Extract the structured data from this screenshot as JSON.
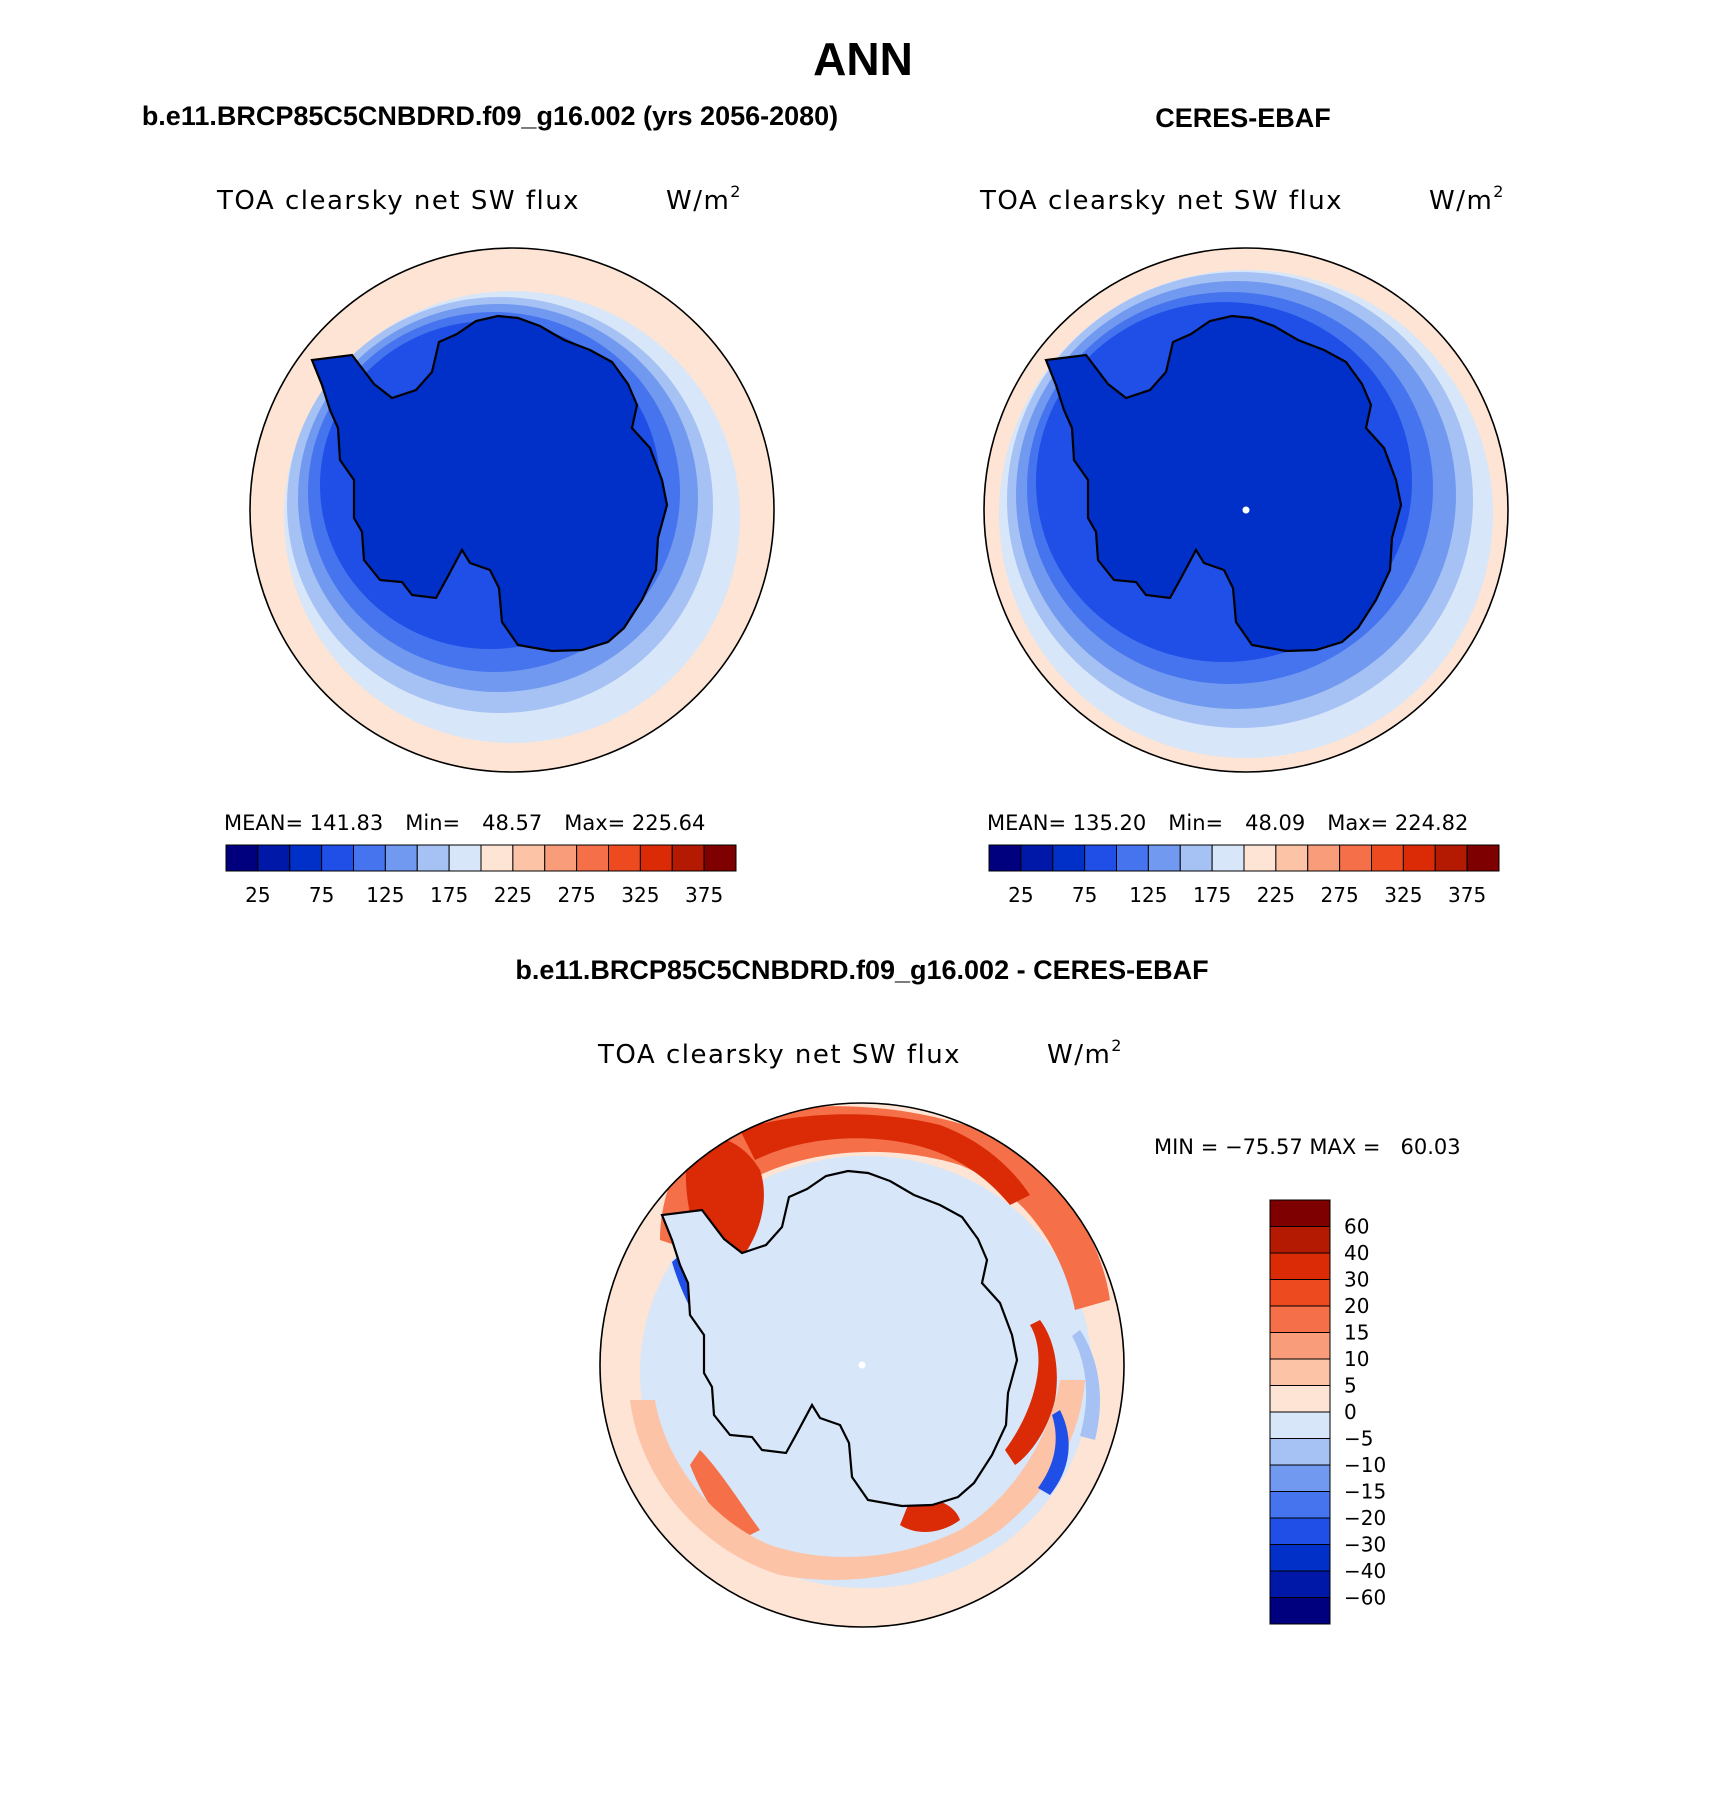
{
  "figure": {
    "main_title": "ANN",
    "panels": [
      {
        "id": "model",
        "title": "b.e11.BRCP85C5CNBDRD.f09_g16.002 (yrs 2056-2080)",
        "variable": "TOA clearsky net SW flux",
        "units_base": "W/m",
        "units_sup": "2",
        "stats": {
          "mean_label": "MEAN=",
          "mean": "141.83",
          "min_label": "Min=",
          "min": "48.57",
          "max_label": "Max=",
          "max": "225.64"
        }
      },
      {
        "id": "obs",
        "title": "CERES-EBAF",
        "variable": "TOA clearsky net SW flux",
        "units_base": "W/m",
        "units_sup": "2",
        "stats": {
          "mean_label": "MEAN=",
          "mean": "135.20",
          "min_label": "Min=",
          "min": "48.09",
          "max_label": "Max=",
          "max": "224.82"
        }
      },
      {
        "id": "diff",
        "title": "b.e11.BRCP85C5CNBDRD.f09_g16.002 - CERES-EBAF",
        "variable": "TOA clearsky net SW flux",
        "units_base": "W/m",
        "units_sup": "2",
        "minmax_text": "MIN = −75.57 MAX =   60.03"
      }
    ],
    "colorbar_abs": {
      "levels": [
        "25",
        "75",
        "125",
        "175",
        "225",
        "275",
        "325",
        "375"
      ],
      "colors": [
        "#00007f",
        "#0018a8",
        "#0030c8",
        "#1f4fe6",
        "#4574ee",
        "#7199ef",
        "#a6c2f4",
        "#d7e6f8",
        "#fde4d4",
        "#fcc3a6",
        "#f99c79",
        "#f57048",
        "#ee4a20",
        "#da2b06",
        "#b41a02",
        "#7f0000"
      ]
    },
    "colorbar_diff": {
      "levels": [
        "60",
        "40",
        "30",
        "20",
        "15",
        "10",
        "5",
        "0",
        "−5",
        "−10",
        "−15",
        "−20",
        "−30",
        "−40",
        "−60"
      ],
      "colors": [
        "#7f0000",
        "#b41a02",
        "#da2b06",
        "#ee4a20",
        "#f57048",
        "#f99c79",
        "#fcc3a6",
        "#fde4d4",
        "#d7e6f8",
        "#a6c2f4",
        "#7199ef",
        "#4574ee",
        "#1f4fe6",
        "#0030c8",
        "#0018a8",
        "#00007f"
      ]
    },
    "field_colors": {
      "ice": "#0030c8",
      "ring1": "#1f4fe6",
      "ring2": "#4574ee",
      "ring3": "#7199ef",
      "ring4": "#a6c2f4",
      "ring5": "#d7e6f8",
      "outer": "#fde4d4",
      "coast": "#000000",
      "diff_base": "#d7e6f8",
      "diff_red_strong": "#da2b06",
      "diff_red": "#f57048",
      "diff_red_light": "#fcc3a6",
      "diff_pink": "#fde4d4",
      "diff_blue": "#1f4fe6",
      "diff_blue_light": "#a6c2f4"
    }
  }
}
